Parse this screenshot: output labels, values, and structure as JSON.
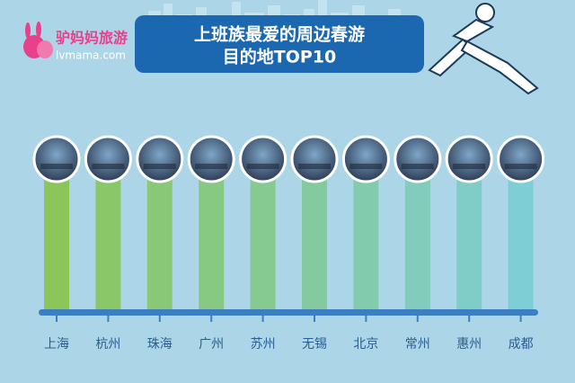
{
  "logo": {
    "name": "驴妈妈旅游",
    "url": "lvmama.com"
  },
  "title": {
    "line1": "上班族最爱的周边春游",
    "line2": "目的地TOP10"
  },
  "items": [
    "上海",
    "杭州",
    "珠海",
    "广州",
    "苏州",
    "无锡",
    "北京",
    "常州",
    "惠州",
    "成都"
  ]
}
